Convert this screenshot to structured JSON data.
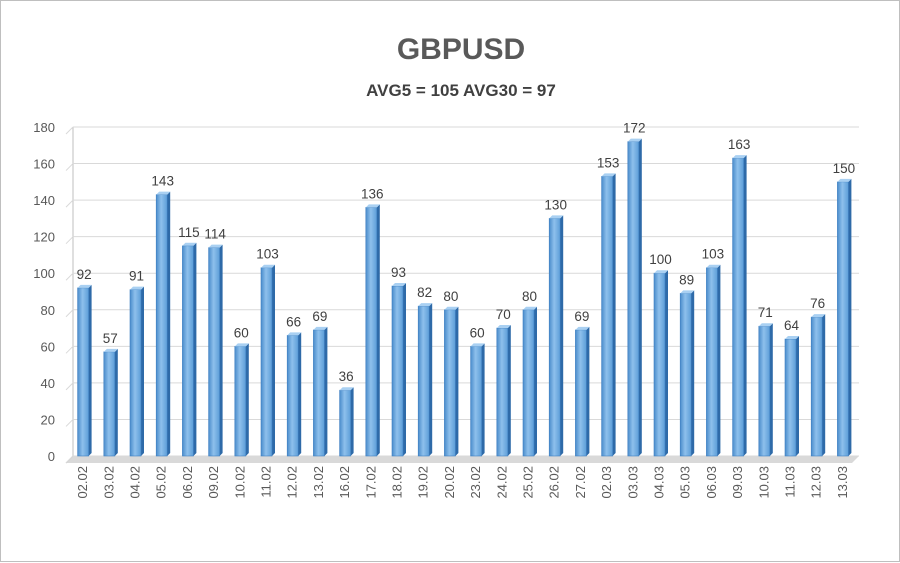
{
  "chart_data": {
    "type": "bar",
    "title": "GBPUSD",
    "subtitle": "AVG5 = 105 AVG30 = 97",
    "xlabel": "",
    "ylabel": "",
    "ylim": [
      0,
      180
    ],
    "yticks": [
      0,
      20,
      40,
      60,
      80,
      100,
      120,
      140,
      160,
      180
    ],
    "grid": true,
    "legend": "none",
    "series_color": "#5b9bd5",
    "categories": [
      "02.02",
      "03.02",
      "04.02",
      "05.02",
      "06.02",
      "09.02",
      "10.02",
      "11.02",
      "12.02",
      "13.02",
      "16.02",
      "17.02",
      "18.02",
      "19.02",
      "20.02",
      "23.02",
      "24.02",
      "25.02",
      "26.02",
      "27.02",
      "02.03",
      "03.03",
      "04.03",
      "05.03",
      "06.03",
      "09.03",
      "10.03",
      "11.03",
      "12.03",
      "13.03"
    ],
    "values": [
      92,
      57,
      91,
      143,
      115,
      114,
      60,
      103,
      66,
      69,
      36,
      136,
      93,
      82,
      80,
      60,
      70,
      80,
      130,
      69,
      153,
      172,
      100,
      89,
      103,
      163,
      71,
      64,
      76,
      150
    ]
  }
}
